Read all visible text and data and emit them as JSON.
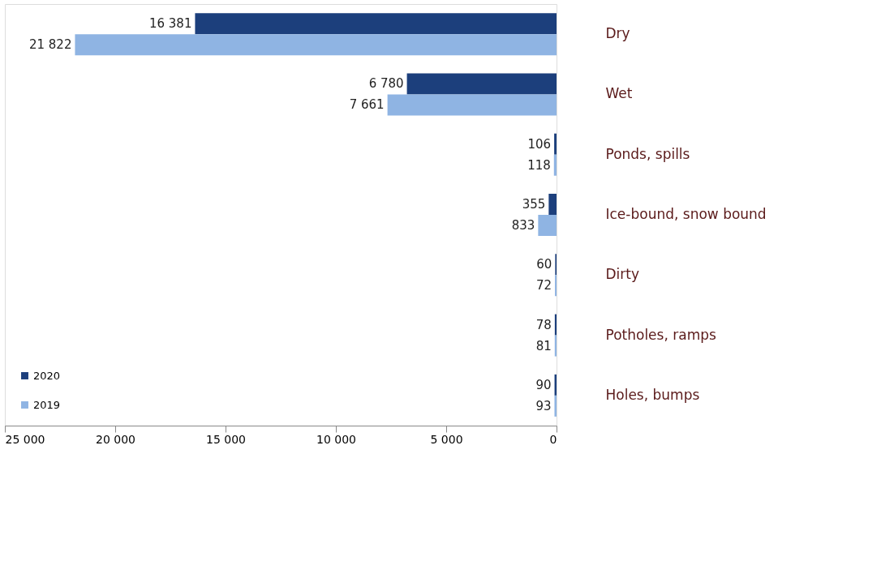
{
  "chart_data": {
    "type": "bar",
    "orientation": "horizontal",
    "categories": [
      "Dry",
      "Wet",
      "Ponds, spills",
      "Ice-bound, snow bound",
      "Dirty",
      "Potholes, ramps",
      "Holes, bumps"
    ],
    "series": [
      {
        "name": "2020",
        "color": "#1c3f7c",
        "values": [
          16381,
          6780,
          106,
          355,
          60,
          78,
          90
        ],
        "value_labels": [
          "16 381",
          "6 780",
          "106",
          "355",
          "60",
          "78",
          "90"
        ]
      },
      {
        "name": "2019",
        "color": "#8fb4e3",
        "values": [
          21822,
          7661,
          118,
          833,
          72,
          81,
          93
        ],
        "value_labels": [
          "21 822",
          "7 661",
          "118",
          "833",
          "72",
          "81",
          "93"
        ]
      }
    ],
    "xlim": [
      25000,
      0
    ],
    "xticks": [
      {
        "value": 25000,
        "label": "25 000"
      },
      {
        "value": 20000,
        "label": "20 000"
      },
      {
        "value": 15000,
        "label": "15 000"
      },
      {
        "value": 10000,
        "label": "10 000"
      },
      {
        "value": 5000,
        "label": "5 000"
      },
      0
    ],
    "grid": false,
    "legend": "bottom left"
  }
}
